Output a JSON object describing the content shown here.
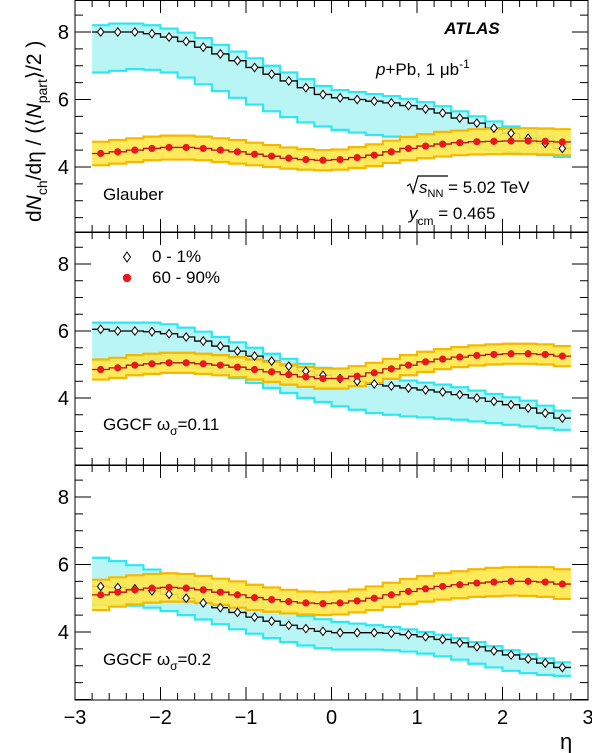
{
  "chart_data": {
    "type": "scatter",
    "experiment": "ATLAS",
    "system": "p+Pb,  1 μb",
    "system_sup": "-1",
    "energy_label": "s",
    "energy_sub": "NN",
    "energy_value": " = 5.02 TeV",
    "ycm_label": "y",
    "ycm_sub": "cm",
    "ycm_value": " = 0.465",
    "ylabel": "dN_ch/dη / (⟨N_part⟩/2)",
    "xlabel": "η",
    "xlim": [
      -3,
      3
    ],
    "ylim": [
      2,
      9
    ],
    "x_ticks": [
      "−3",
      "−2",
      "−1",
      "0",
      "1",
      "2",
      "3"
    ],
    "y_ticks": [
      "4",
      "6",
      "8"
    ],
    "legend": [
      "0 - 1%",
      "60 - 90%"
    ],
    "panels": [
      {
        "label": "Glauber",
        "series": [
          {
            "name": "0 - 1%",
            "x": [
              -2.7,
              -2.5,
              -2.3,
              -2.1,
              -1.9,
              -1.7,
              -1.5,
              -1.3,
              -1.1,
              -0.9,
              -0.7,
              -0.5,
              -0.3,
              -0.1,
              0.1,
              0.3,
              0.5,
              0.7,
              0.9,
              1.1,
              1.3,
              1.5,
              1.7,
              1.9,
              2.1,
              2.3,
              2.5,
              2.7
            ],
            "y": [
              8.0,
              8.0,
              8.0,
              7.95,
              7.85,
              7.72,
              7.55,
              7.35,
              7.15,
              6.95,
              6.75,
              6.55,
              6.35,
              6.15,
              6.05,
              6.0,
              5.95,
              5.9,
              5.82,
              5.72,
              5.6,
              5.45,
              5.3,
              5.15,
              5.0,
              4.85,
              4.7,
              4.55
            ],
            "sys_low": [
              6.8,
              6.85,
              6.9,
              6.88,
              6.8,
              6.65,
              6.45,
              6.25,
              6.05,
              5.85,
              5.65,
              5.48,
              5.32,
              5.2,
              5.1,
              5.02,
              4.95,
              4.9,
              4.85,
              4.78,
              4.7,
              4.62,
              4.55,
              4.5,
              4.45,
              4.4,
              4.35,
              4.3
            ],
            "sys_high": [
              8.2,
              8.25,
              8.25,
              8.2,
              8.1,
              7.98,
              7.82,
              7.62,
              7.42,
              7.22,
              7.0,
              6.8,
              6.6,
              6.4,
              6.28,
              6.22,
              6.16,
              6.1,
              6.02,
              5.92,
              5.8,
              5.65,
              5.5,
              5.35,
              5.2,
              5.05,
              4.9,
              4.78
            ]
          },
          {
            "name": "60 - 90%",
            "x": [
              -2.7,
              -2.5,
              -2.3,
              -2.1,
              -1.9,
              -1.7,
              -1.5,
              -1.3,
              -1.1,
              -0.9,
              -0.7,
              -0.5,
              -0.3,
              -0.1,
              0.1,
              0.3,
              0.5,
              0.7,
              0.9,
              1.1,
              1.3,
              1.5,
              1.7,
              1.9,
              2.1,
              2.3,
              2.5,
              2.7
            ],
            "y": [
              4.4,
              4.45,
              4.5,
              4.55,
              4.58,
              4.58,
              4.55,
              4.5,
              4.45,
              4.38,
              4.32,
              4.26,
              4.22,
              4.2,
              4.22,
              4.28,
              4.35,
              4.45,
              4.55,
              4.62,
              4.68,
              4.72,
              4.75,
              4.76,
              4.77,
              4.77,
              4.76,
              4.74
            ],
            "sys_low": [
              4.05,
              4.1,
              4.15,
              4.2,
              4.22,
              4.22,
              4.2,
              4.15,
              4.1,
              4.05,
              4.0,
              3.95,
              3.92,
              3.9,
              3.92,
              3.97,
              4.03,
              4.12,
              4.2,
              4.26,
              4.31,
              4.35,
              4.37,
              4.38,
              4.39,
              4.38,
              4.37,
              4.35
            ],
            "sys_high": [
              4.75,
              4.8,
              4.85,
              4.9,
              4.93,
              4.93,
              4.9,
              4.85,
              4.8,
              4.72,
              4.65,
              4.58,
              4.53,
              4.5,
              4.52,
              4.59,
              4.67,
              4.78,
              4.89,
              4.97,
              5.04,
              5.08,
              5.12,
              5.13,
              5.14,
              5.15,
              5.14,
              5.12
            ]
          }
        ]
      },
      {
        "label": "GGCF ω",
        "label_sub": "σ",
        "label_tail": "=0.11",
        "series": [
          {
            "name": "0 - 1%",
            "x": [
              -2.7,
              -2.5,
              -2.3,
              -2.1,
              -1.9,
              -1.7,
              -1.5,
              -1.3,
              -1.1,
              -0.9,
              -0.7,
              -0.5,
              -0.3,
              -0.1,
              0.1,
              0.3,
              0.5,
              0.7,
              0.9,
              1.1,
              1.3,
              1.5,
              1.7,
              1.9,
              2.1,
              2.3,
              2.5,
              2.7
            ],
            "y": [
              6.05,
              6.0,
              6.0,
              5.98,
              5.92,
              5.82,
              5.7,
              5.55,
              5.4,
              5.25,
              5.1,
              4.95,
              4.8,
              4.68,
              4.58,
              4.5,
              4.42,
              4.36,
              4.3,
              4.24,
              4.18,
              4.1,
              4.0,
              3.9,
              3.8,
              3.7,
              3.55,
              3.4
            ],
            "sys_low": [
              5.1,
              5.1,
              5.15,
              5.15,
              5.1,
              5.0,
              4.9,
              4.75,
              4.6,
              4.45,
              4.3,
              4.15,
              4.0,
              3.88,
              3.75,
              3.65,
              3.55,
              3.5,
              3.45,
              3.42,
              3.38,
              3.35,
              3.3,
              3.25,
              3.2,
              3.15,
              3.1,
              3.05
            ],
            "sys_high": [
              6.25,
              6.25,
              6.25,
              6.25,
              6.2,
              6.1,
              5.98,
              5.82,
              5.66,
              5.5,
              5.32,
              5.17,
              5.02,
              4.9,
              4.8,
              4.72,
              4.64,
              4.58,
              4.52,
              4.46,
              4.4,
              4.32,
              4.22,
              4.12,
              4.02,
              3.92,
              3.77,
              3.62
            ]
          },
          {
            "name": "60 - 90%",
            "x": [
              -2.7,
              -2.5,
              -2.3,
              -2.1,
              -1.9,
              -1.7,
              -1.5,
              -1.3,
              -1.1,
              -0.9,
              -0.7,
              -0.5,
              -0.3,
              -0.1,
              0.1,
              0.3,
              0.5,
              0.7,
              0.9,
              1.1,
              1.3,
              1.5,
              1.7,
              1.9,
              2.1,
              2.3,
              2.5,
              2.7
            ],
            "y": [
              4.85,
              4.9,
              4.98,
              5.02,
              5.05,
              5.05,
              5.02,
              4.98,
              4.92,
              4.85,
              4.78,
              4.7,
              4.63,
              4.58,
              4.58,
              4.65,
              4.75,
              4.87,
              4.98,
              5.08,
              5.16,
              5.22,
              5.27,
              5.3,
              5.32,
              5.32,
              5.3,
              5.25
            ],
            "sys_low": [
              4.55,
              4.6,
              4.68,
              4.72,
              4.75,
              4.75,
              4.72,
              4.68,
              4.62,
              4.55,
              4.48,
              4.4,
              4.33,
              4.28,
              4.28,
              4.35,
              4.45,
              4.57,
              4.68,
              4.78,
              4.86,
              4.92,
              4.97,
              5.0,
              5.02,
              5.02,
              5.0,
              4.95
            ],
            "sys_high": [
              5.15,
              5.2,
              5.28,
              5.32,
              5.35,
              5.35,
              5.32,
              5.28,
              5.22,
              5.15,
              5.08,
              5.0,
              4.93,
              4.88,
              4.88,
              4.95,
              5.05,
              5.17,
              5.28,
              5.38,
              5.46,
              5.52,
              5.57,
              5.6,
              5.62,
              5.62,
              5.6,
              5.55
            ]
          }
        ]
      },
      {
        "label": "GGCF ω",
        "label_sub": "σ",
        "label_tail": "=0.2",
        "series": [
          {
            "name": "0 - 1%",
            "x": [
              -2.7,
              -2.5,
              -2.3,
              -2.1,
              -1.9,
              -1.7,
              -1.5,
              -1.3,
              -1.1,
              -0.9,
              -0.7,
              -0.5,
              -0.3,
              -0.1,
              0.1,
              0.3,
              0.5,
              0.7,
              0.9,
              1.1,
              1.3,
              1.5,
              1.7,
              1.9,
              2.1,
              2.3,
              2.5,
              2.7
            ],
            "y": [
              5.35,
              5.32,
              5.28,
              5.22,
              5.12,
              5.0,
              4.86,
              4.72,
              4.58,
              4.44,
              4.32,
              4.2,
              4.1,
              4.02,
              3.98,
              3.98,
              3.98,
              3.96,
              3.92,
              3.86,
              3.78,
              3.68,
              3.56,
              3.44,
              3.32,
              3.2,
              3.08,
              2.95
            ],
            "sys_low": [
              4.8,
              4.8,
              4.78,
              4.72,
              4.62,
              4.5,
              4.37,
              4.23,
              4.08,
              3.95,
              3.82,
              3.7,
              3.6,
              3.52,
              3.48,
              3.48,
              3.48,
              3.46,
              3.42,
              3.36,
              3.28,
              3.18,
              3.06,
              2.95,
              2.85,
              2.78,
              2.73,
              2.7
            ],
            "sys_high": [
              6.2,
              6.1,
              5.98,
              5.85,
              5.72,
              5.58,
              5.42,
              5.25,
              5.08,
              4.9,
              4.75,
              4.6,
              4.48,
              4.38,
              4.3,
              4.25,
              4.2,
              4.15,
              4.08,
              4.0,
              3.92,
              3.82,
              3.7,
              3.58,
              3.46,
              3.34,
              3.22,
              3.1
            ]
          },
          {
            "name": "60 - 90%",
            "x": [
              -2.7,
              -2.5,
              -2.3,
              -2.1,
              -1.9,
              -1.7,
              -1.5,
              -1.3,
              -1.1,
              -0.9,
              -0.7,
              -0.5,
              -0.3,
              -0.1,
              0.1,
              0.3,
              0.5,
              0.7,
              0.9,
              1.1,
              1.3,
              1.5,
              1.7,
              1.9,
              2.1,
              2.3,
              2.5,
              2.7
            ],
            "y": [
              5.1,
              5.18,
              5.25,
              5.3,
              5.32,
              5.3,
              5.25,
              5.18,
              5.1,
              5.02,
              4.96,
              4.9,
              4.86,
              4.84,
              4.86,
              4.92,
              5.0,
              5.1,
              5.2,
              5.28,
              5.35,
              5.4,
              5.45,
              5.48,
              5.5,
              5.5,
              5.48,
              5.42
            ],
            "sys_low": [
              4.65,
              4.75,
              4.82,
              4.87,
              4.9,
              4.9,
              4.86,
              4.8,
              4.72,
              4.65,
              4.6,
              4.55,
              4.52,
              4.5,
              4.52,
              4.58,
              4.65,
              4.74,
              4.83,
              4.9,
              4.96,
              5.0,
              5.04,
              5.06,
              5.08,
              5.07,
              5.04,
              4.98
            ],
            "sys_high": [
              5.55,
              5.62,
              5.68,
              5.72,
              5.74,
              5.72,
              5.66,
              5.58,
              5.5,
              5.4,
              5.32,
              5.25,
              5.2,
              5.18,
              5.2,
              5.26,
              5.35,
              5.46,
              5.57,
              5.66,
              5.74,
              5.8,
              5.86,
              5.9,
              5.92,
              5.93,
              5.92,
              5.86
            ]
          }
        ]
      }
    ],
    "colors": {
      "central_band_fill": "#aef3f5",
      "central_band_edge": "#2ce8f0",
      "peripheral_band_fill": "#ffe84a",
      "peripheral_band_edge": "#f5b800",
      "peripheral_marker": "#e8181c",
      "central_marker": "#000000"
    }
  }
}
